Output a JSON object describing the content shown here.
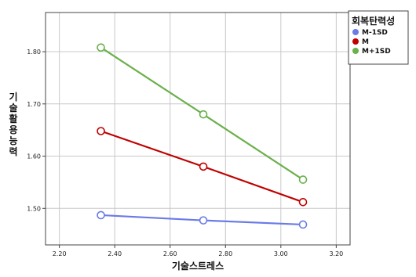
{
  "chart_data": {
    "type": "line",
    "xlabel": "기술스트레스",
    "ylabel": "기술활용능력",
    "xlim": [
      2.15,
      3.25
    ],
    "ylim": [
      1.43,
      1.875
    ],
    "xticks": [
      "2.20",
      "2.40",
      "2.60",
      "2.80",
      "3.00",
      "3.20"
    ],
    "yticks": [
      "1.50",
      "1.60",
      "1.70",
      "1.80"
    ],
    "grid": true,
    "legend": {
      "title": "회복탄력성",
      "placement": "top-right"
    },
    "series": [
      {
        "name": "M-1SD",
        "color": "#6a7be6",
        "x": [
          2.35,
          2.72,
          3.08
        ],
        "y": [
          1.487,
          1.477,
          1.469
        ]
      },
      {
        "name": "M",
        "color": "#c00000",
        "x": [
          2.35,
          2.72,
          3.08
        ],
        "y": [
          1.648,
          1.58,
          1.512
        ]
      },
      {
        "name": "M+1SD",
        "color": "#6ab04c",
        "x": [
          2.35,
          2.72,
          3.08
        ],
        "y": [
          1.808,
          1.68,
          1.555
        ]
      }
    ]
  }
}
